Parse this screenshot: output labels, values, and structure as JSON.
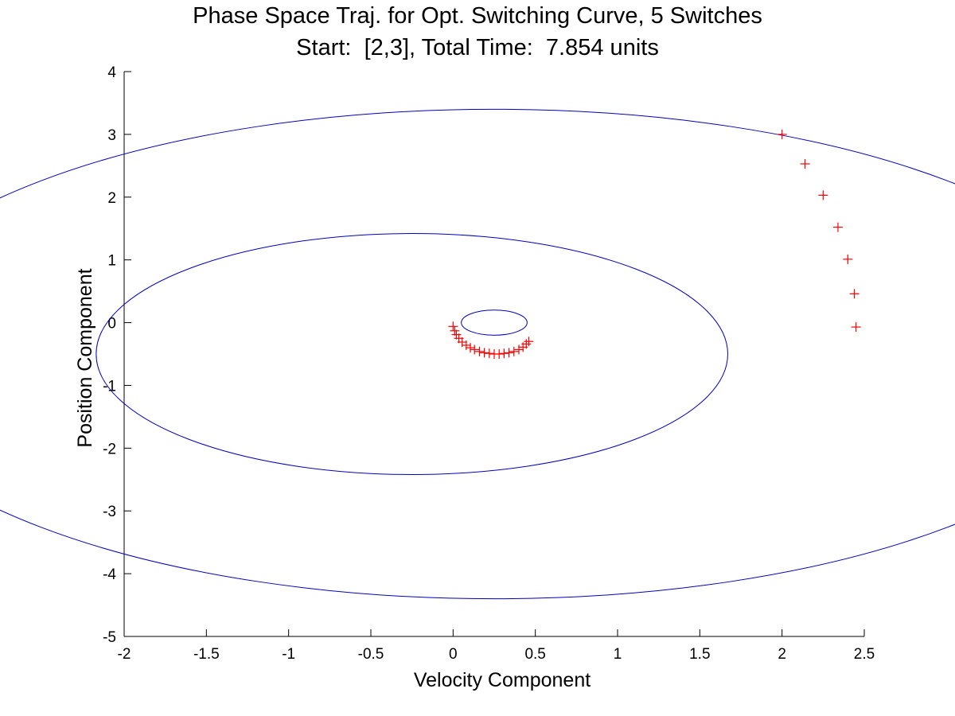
{
  "chart_data": {
    "type": "line",
    "title": "Phase Space Traj. for Opt. Switching Curve, 5 Switches",
    "subtitle": "Start:  [2,3], Total Time:  7.854 units",
    "xlabel": "Velocity Component",
    "ylabel": "Position Component",
    "xlim": [
      -2,
      2.5
    ],
    "ylim": [
      -5,
      4
    ],
    "xticks": [
      -2,
      -1.5,
      -1,
      -0.5,
      0,
      0.5,
      1,
      1.5,
      2,
      2.5
    ],
    "xtick_labels": [
      "-2",
      "-1.5",
      "-1",
      "-0.5",
      "0",
      "0.5",
      "1",
      "1.5",
      "2",
      "2.5"
    ],
    "yticks": [
      -5,
      -4,
      -3,
      -2,
      -1,
      0,
      1,
      2,
      3,
      4
    ],
    "ytick_labels": [
      "-5",
      "-4",
      "-3",
      "-2",
      "-1",
      "0",
      "1",
      "2",
      "3",
      "4"
    ],
    "grid": false,
    "series": [
      {
        "color": "#0000bf",
        "style": "line",
        "arcs": [
          {
            "center": [
              0.25,
              0
            ],
            "radius": 0.2
          },
          {
            "center": [
              -0.25,
              -0.5
            ],
            "radius": 1.92
          },
          {
            "center": [
              0.25,
              -0.5
            ],
            "radius": 3.9
          }
        ]
      },
      {
        "color": "#ff0000",
        "style": "marker-plus",
        "points": [
          [
            2.0,
            3.0
          ],
          [
            2.14,
            2.53
          ],
          [
            2.25,
            2.03
          ],
          [
            2.34,
            1.52
          ],
          [
            2.4,
            1.01
          ],
          [
            2.44,
            0.46
          ],
          [
            2.45,
            -0.07
          ],
          [
            0.0,
            -0.06
          ],
          [
            0.01,
            -0.13
          ],
          [
            0.02,
            -0.19
          ],
          [
            0.035,
            -0.25
          ],
          [
            0.055,
            -0.31
          ],
          [
            0.08,
            -0.36
          ],
          [
            0.105,
            -0.4
          ],
          [
            0.13,
            -0.43
          ],
          [
            0.16,
            -0.46
          ],
          [
            0.19,
            -0.48
          ],
          [
            0.22,
            -0.49
          ],
          [
            0.25,
            -0.5
          ],
          [
            0.28,
            -0.5
          ],
          [
            0.31,
            -0.49
          ],
          [
            0.34,
            -0.48
          ],
          [
            0.37,
            -0.46
          ],
          [
            0.4,
            -0.43
          ],
          [
            0.425,
            -0.39
          ],
          [
            0.445,
            -0.34
          ],
          [
            0.46,
            -0.3
          ]
        ]
      }
    ]
  }
}
